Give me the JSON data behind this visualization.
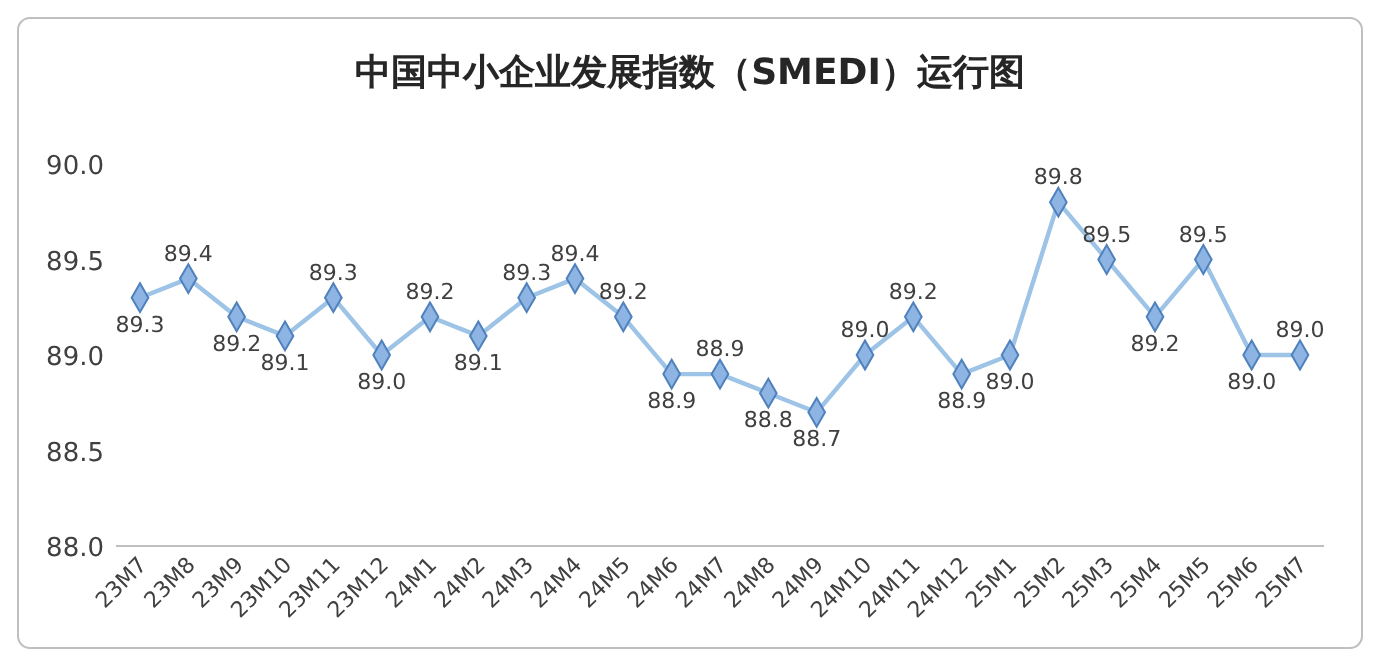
{
  "chart_data": {
    "type": "line",
    "title": "中国中小企业发展指数（SMEDI）运行图",
    "categories": [
      "23M7",
      "23M8",
      "23M9",
      "23M10",
      "23M11",
      "23M12",
      "24M1",
      "24M2",
      "24M3",
      "24M4",
      "24M5",
      "24M6",
      "24M7",
      "24M8",
      "24M9",
      "24M10",
      "24M11",
      "24M12",
      "25M1",
      "25M2",
      "25M3",
      "25M4",
      "25M5",
      "25M6",
      "25M7"
    ],
    "series": [
      {
        "color": "#9dc3e6",
        "value_labels": [
          "89.3",
          "89.4",
          "89.2",
          "89.1",
          "89.3",
          "89.0",
          "89.2",
          "89.1",
          "89.3",
          "89.4",
          "89.2",
          "88.9",
          "88.9",
          "88.8",
          "88.7",
          "89.0",
          "89.2",
          "88.9",
          "89.0",
          "89.8",
          "89.5",
          "89.2",
          "89.5",
          "89.0",
          "89.0"
        ],
        "values": [
          89.3,
          89.4,
          89.2,
          89.1,
          89.3,
          89.0,
          89.2,
          89.1,
          89.3,
          89.4,
          89.2,
          88.9,
          88.9,
          88.8,
          88.7,
          89.0,
          89.2,
          88.9,
          89.0,
          89.8,
          89.5,
          89.2,
          89.5,
          89.0,
          89.0
        ]
      }
    ],
    "ylim": [
      88.0,
      90.0
    ],
    "yticks": [
      {
        "value": 88,
        "label": "88.0"
      },
      {
        "value": 88.5,
        "label": "88.5"
      },
      {
        "value": 89,
        "label": "89.0"
      },
      {
        "value": 89.5,
        "label": "89.5"
      },
      {
        "value": 90,
        "label": "90.0"
      }
    ],
    "grid": false,
    "marker": "diamond",
    "line_style": "solid"
  }
}
